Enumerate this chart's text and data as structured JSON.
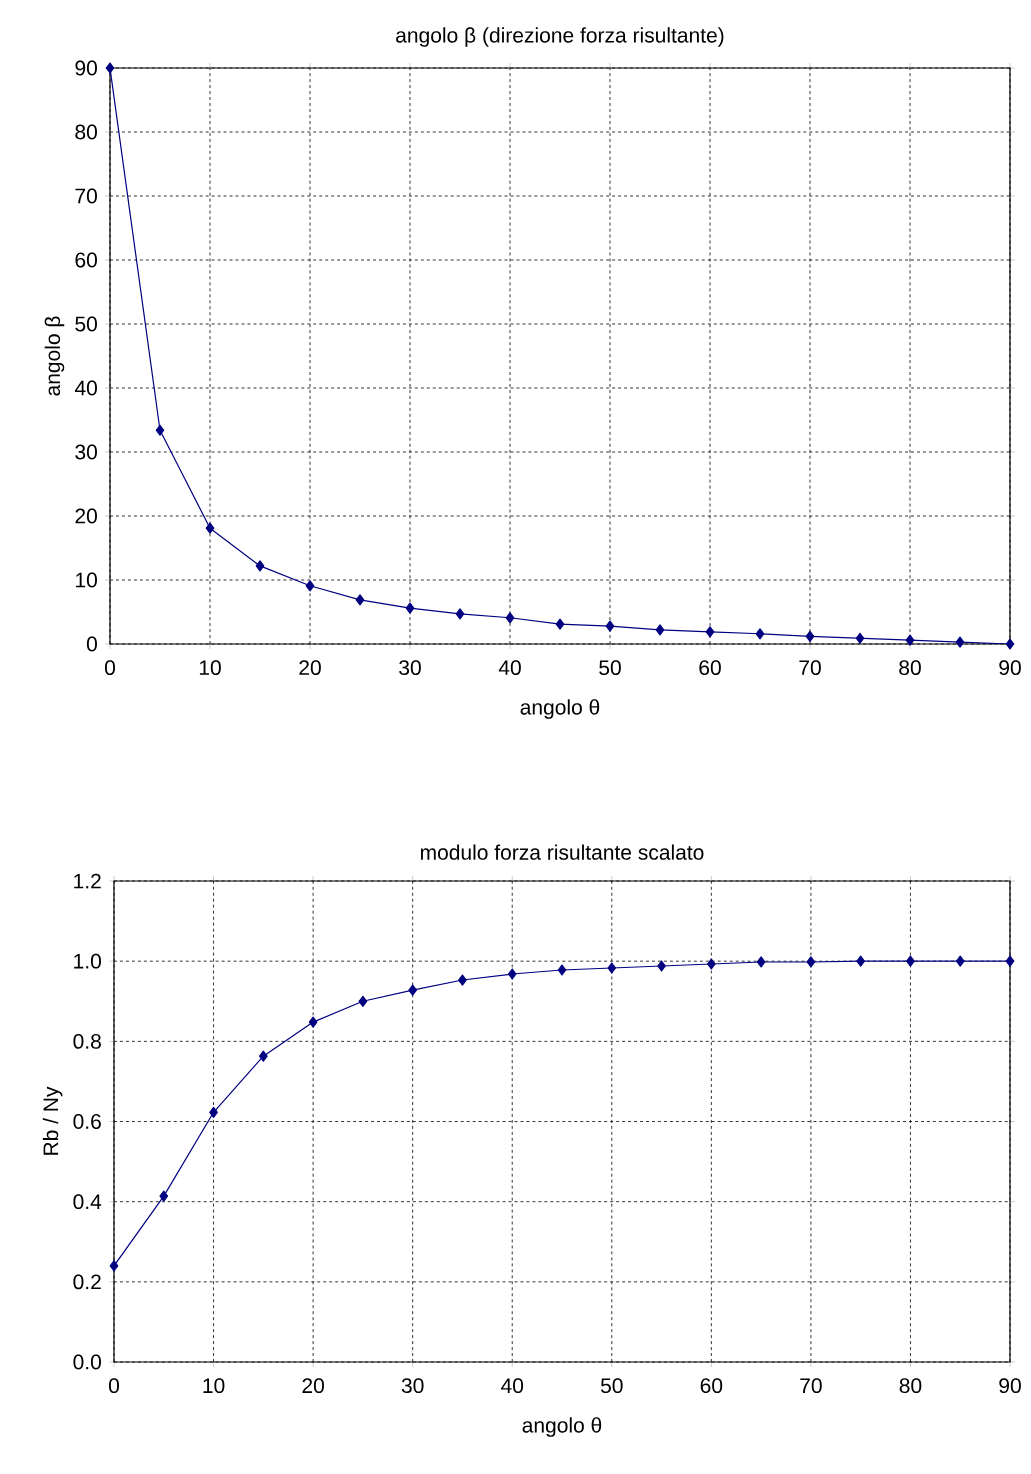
{
  "chart_data": [
    {
      "type": "line",
      "title": "angolo β (direzione forza risultante)",
      "xlabel": "angolo θ",
      "ylabel": "angolo β",
      "x": [
        0,
        5,
        10,
        15,
        20,
        25,
        30,
        35,
        40,
        45,
        50,
        55,
        60,
        65,
        70,
        75,
        80,
        85,
        90
      ],
      "series": [
        {
          "color": "#000080",
          "values": [
            90,
            33.4,
            18.1,
            12.2,
            9.1,
            6.9,
            5.6,
            4.7,
            4.1,
            3.1,
            2.8,
            2.2,
            1.9,
            1.6,
            1.2,
            0.9,
            0.6,
            0.3,
            0
          ]
        }
      ],
      "xlim": [
        0,
        90
      ],
      "ylim": [
        0,
        90
      ],
      "xticks": [
        0,
        10,
        20,
        30,
        40,
        50,
        60,
        70,
        80,
        90
      ],
      "yticks": [
        0,
        10,
        20,
        30,
        40,
        50,
        60,
        70,
        80,
        90
      ],
      "grid": true,
      "marker": "diamond",
      "line_style": "solid"
    },
    {
      "type": "line",
      "title": "modulo forza risultante scalato",
      "xlabel": "angolo θ",
      "ylabel": "Rb / Ny",
      "x": [
        0,
        5,
        10,
        15,
        20,
        25,
        30,
        35,
        40,
        45,
        50,
        55,
        60,
        65,
        70,
        75,
        80,
        85,
        90
      ],
      "series": [
        {
          "color": "#000080",
          "values": [
            0.24,
            0.414,
            0.623,
            0.763,
            0.848,
            0.9,
            0.928,
            0.953,
            0.968,
            0.978,
            0.983,
            0.988,
            0.993,
            0.998,
            0.998,
            1.0,
            1.0,
            1.0,
            1.0
          ]
        }
      ],
      "xlim": [
        0,
        90
      ],
      "ylim": [
        0,
        1.2
      ],
      "xticks": [
        0,
        10,
        20,
        30,
        40,
        50,
        60,
        70,
        80,
        90
      ],
      "yticks": [
        {
          "value": 0,
          "label": "0.0"
        },
        {
          "value": 0.2,
          "label": "0.2"
        },
        {
          "value": 0.4,
          "label": "0.4"
        },
        {
          "value": 0.6,
          "label": "0.6"
        },
        {
          "value": 0.8,
          "label": "0.8"
        },
        {
          "value": 1.0,
          "label": "1.0"
        },
        {
          "value": 1.2,
          "label": "1.2"
        }
      ],
      "grid": true,
      "marker": "diamond",
      "line_style": "solid"
    }
  ]
}
